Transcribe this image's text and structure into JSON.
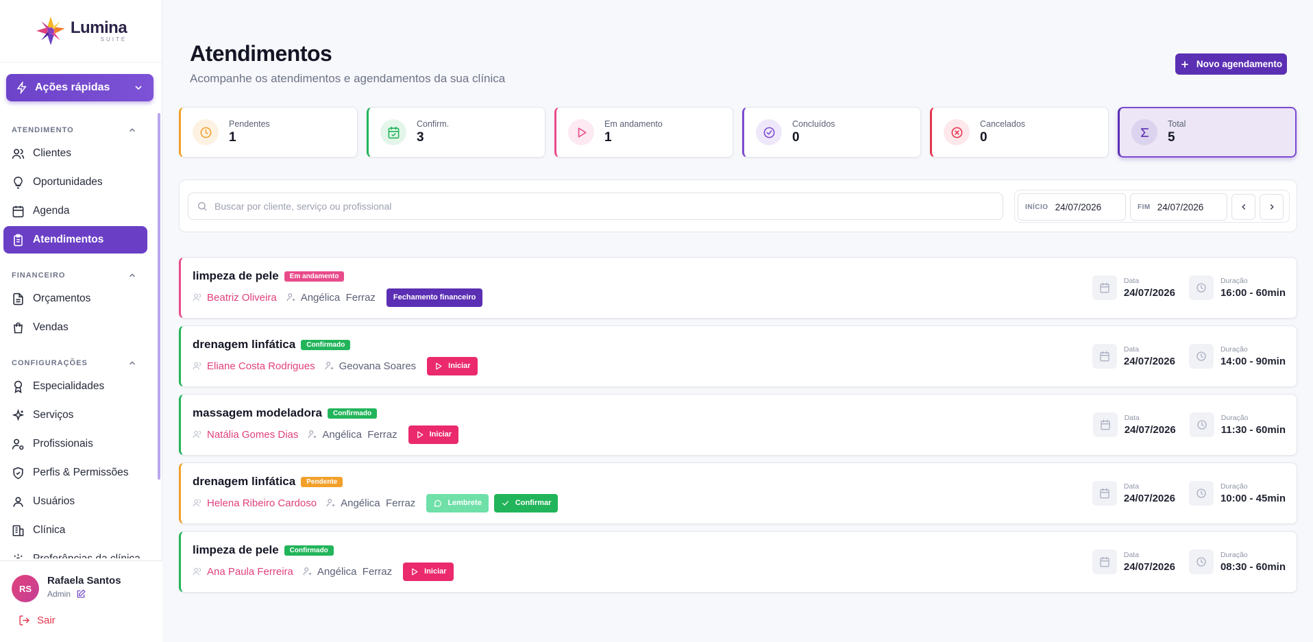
{
  "brand": {
    "name": "Lumina",
    "suite": "SUITE"
  },
  "sidebar": {
    "quick_actions": "Ações rápidas",
    "sections": [
      {
        "title": "ATENDIMENTO",
        "items": [
          {
            "label": "Clientes",
            "icon": "users-icon"
          },
          {
            "label": "Oportunidades",
            "icon": "lightbulb-icon"
          },
          {
            "label": "Agenda",
            "icon": "calendar-icon"
          },
          {
            "label": "Atendimentos",
            "icon": "clipboard-icon",
            "active": true
          }
        ]
      },
      {
        "title": "FINANCEIRO",
        "items": [
          {
            "label": "Orçamentos",
            "icon": "document-icon"
          },
          {
            "label": "Vendas",
            "icon": "shopping-bag-icon"
          }
        ]
      },
      {
        "title": "CONFIGURAÇÕES",
        "items": [
          {
            "label": "Especialidades",
            "icon": "award-icon"
          },
          {
            "label": "Serviços",
            "icon": "sparkles-icon"
          },
          {
            "label": "Profissionais",
            "icon": "user-cog-icon"
          },
          {
            "label": "Perfis & Permissões",
            "icon": "shield-icon"
          },
          {
            "label": "Usuários",
            "icon": "user-icon"
          },
          {
            "label": "Clínica",
            "icon": "building-icon"
          },
          {
            "label": "Preferências da clínica",
            "icon": "gear-icon"
          }
        ]
      }
    ],
    "user": {
      "initials": "RS",
      "name": "Rafaela Santos",
      "role": "Admin"
    },
    "logout": "Sair"
  },
  "header": {
    "title": "Atendimentos",
    "subtitle": "Acompanhe os atendimentos e agendamentos da sua clínica",
    "new_button": "Novo agendamento"
  },
  "stats": [
    {
      "label": "Pendentes",
      "value": "1",
      "color": "#f2a02a",
      "bg": "#fdf2e2",
      "icon": "clock-icon"
    },
    {
      "label": "Confirm.",
      "value": "3",
      "color": "#22b45a",
      "bg": "#e4f6ea",
      "icon": "calendar-check-icon"
    },
    {
      "label": "Em andamento",
      "value": "1",
      "color": "#e84b8a",
      "bg": "#fce9f1",
      "icon": "play-icon"
    },
    {
      "label": "Concluídos",
      "value": "0",
      "color": "#7b4ad0",
      "bg": "#efe8fa",
      "icon": "check-circle-icon"
    },
    {
      "label": "Cancelados",
      "value": "0",
      "color": "#e5364d",
      "bg": "#fde8eb",
      "icon": "x-circle-icon"
    },
    {
      "label": "Total",
      "value": "5",
      "color": "#5b2fb3",
      "bg": "#dcd3ee",
      "icon": "sigma-icon"
    }
  ],
  "filter": {
    "search_placeholder": "Buscar por cliente, serviço ou profissional",
    "start_label": "INÍCIO",
    "start_value": "24/07/2026",
    "end_label": "FIM",
    "end_value": "24/07/2026"
  },
  "meta_labels": {
    "date": "Data",
    "duration": "Duração"
  },
  "appointments": [
    {
      "service": "limpeza de pele",
      "status": "Em andamento",
      "status_color": "#e84b8a",
      "border": "#e84b8a",
      "client": "Beatriz Oliveira",
      "professional": "Angélica  Ferraz",
      "actions": [
        {
          "label": "Fechamento financeiro",
          "color": "#5b2fb3",
          "icon": ""
        }
      ],
      "date": "24/07/2026",
      "duration": "16:00 - 60min"
    },
    {
      "service": "drenagem linfática",
      "status": "Confirmado",
      "status_color": "#22b45a",
      "border": "#22b45a",
      "client": "Eliane Costa Rodrigues",
      "professional": "Geovana Soares",
      "actions": [
        {
          "label": "Iniciar",
          "color": "#ea2a6c",
          "icon": "play-icon"
        }
      ],
      "date": "24/07/2026",
      "duration": "14:00 - 90min"
    },
    {
      "service": "massagem modeladora",
      "status": "Confirmado",
      "status_color": "#22b45a",
      "border": "#22b45a",
      "client": "Natália Gomes Dias",
      "professional": "Angélica  Ferraz",
      "actions": [
        {
          "label": "Iniciar",
          "color": "#ea2a6c",
          "icon": "play-icon"
        }
      ],
      "date": "24/07/2026",
      "duration": "11:30 - 60min"
    },
    {
      "service": "drenagem linfática",
      "status": "Pendente",
      "status_color": "#f2a02a",
      "border": "#f2a02a",
      "client": "Helena Ribeiro Cardoso",
      "professional": "Angélica  Ferraz",
      "actions": [
        {
          "label": "Lembrete",
          "color": "#6fe0a8",
          "icon": "whatsapp-icon"
        },
        {
          "label": "Confirmar",
          "color": "#22b45a",
          "icon": "check-icon"
        }
      ],
      "date": "24/07/2026",
      "duration": "10:00 - 45min"
    },
    {
      "service": "limpeza de pele",
      "status": "Confirmado",
      "status_color": "#22b45a",
      "border": "#22b45a",
      "client": "Ana Paula Ferreira",
      "professional": "Angélica  Ferraz",
      "actions": [
        {
          "label": "Iniciar",
          "color": "#ea2a6c",
          "icon": "play-icon"
        }
      ],
      "date": "24/07/2026",
      "duration": "08:30 - 60min"
    }
  ]
}
